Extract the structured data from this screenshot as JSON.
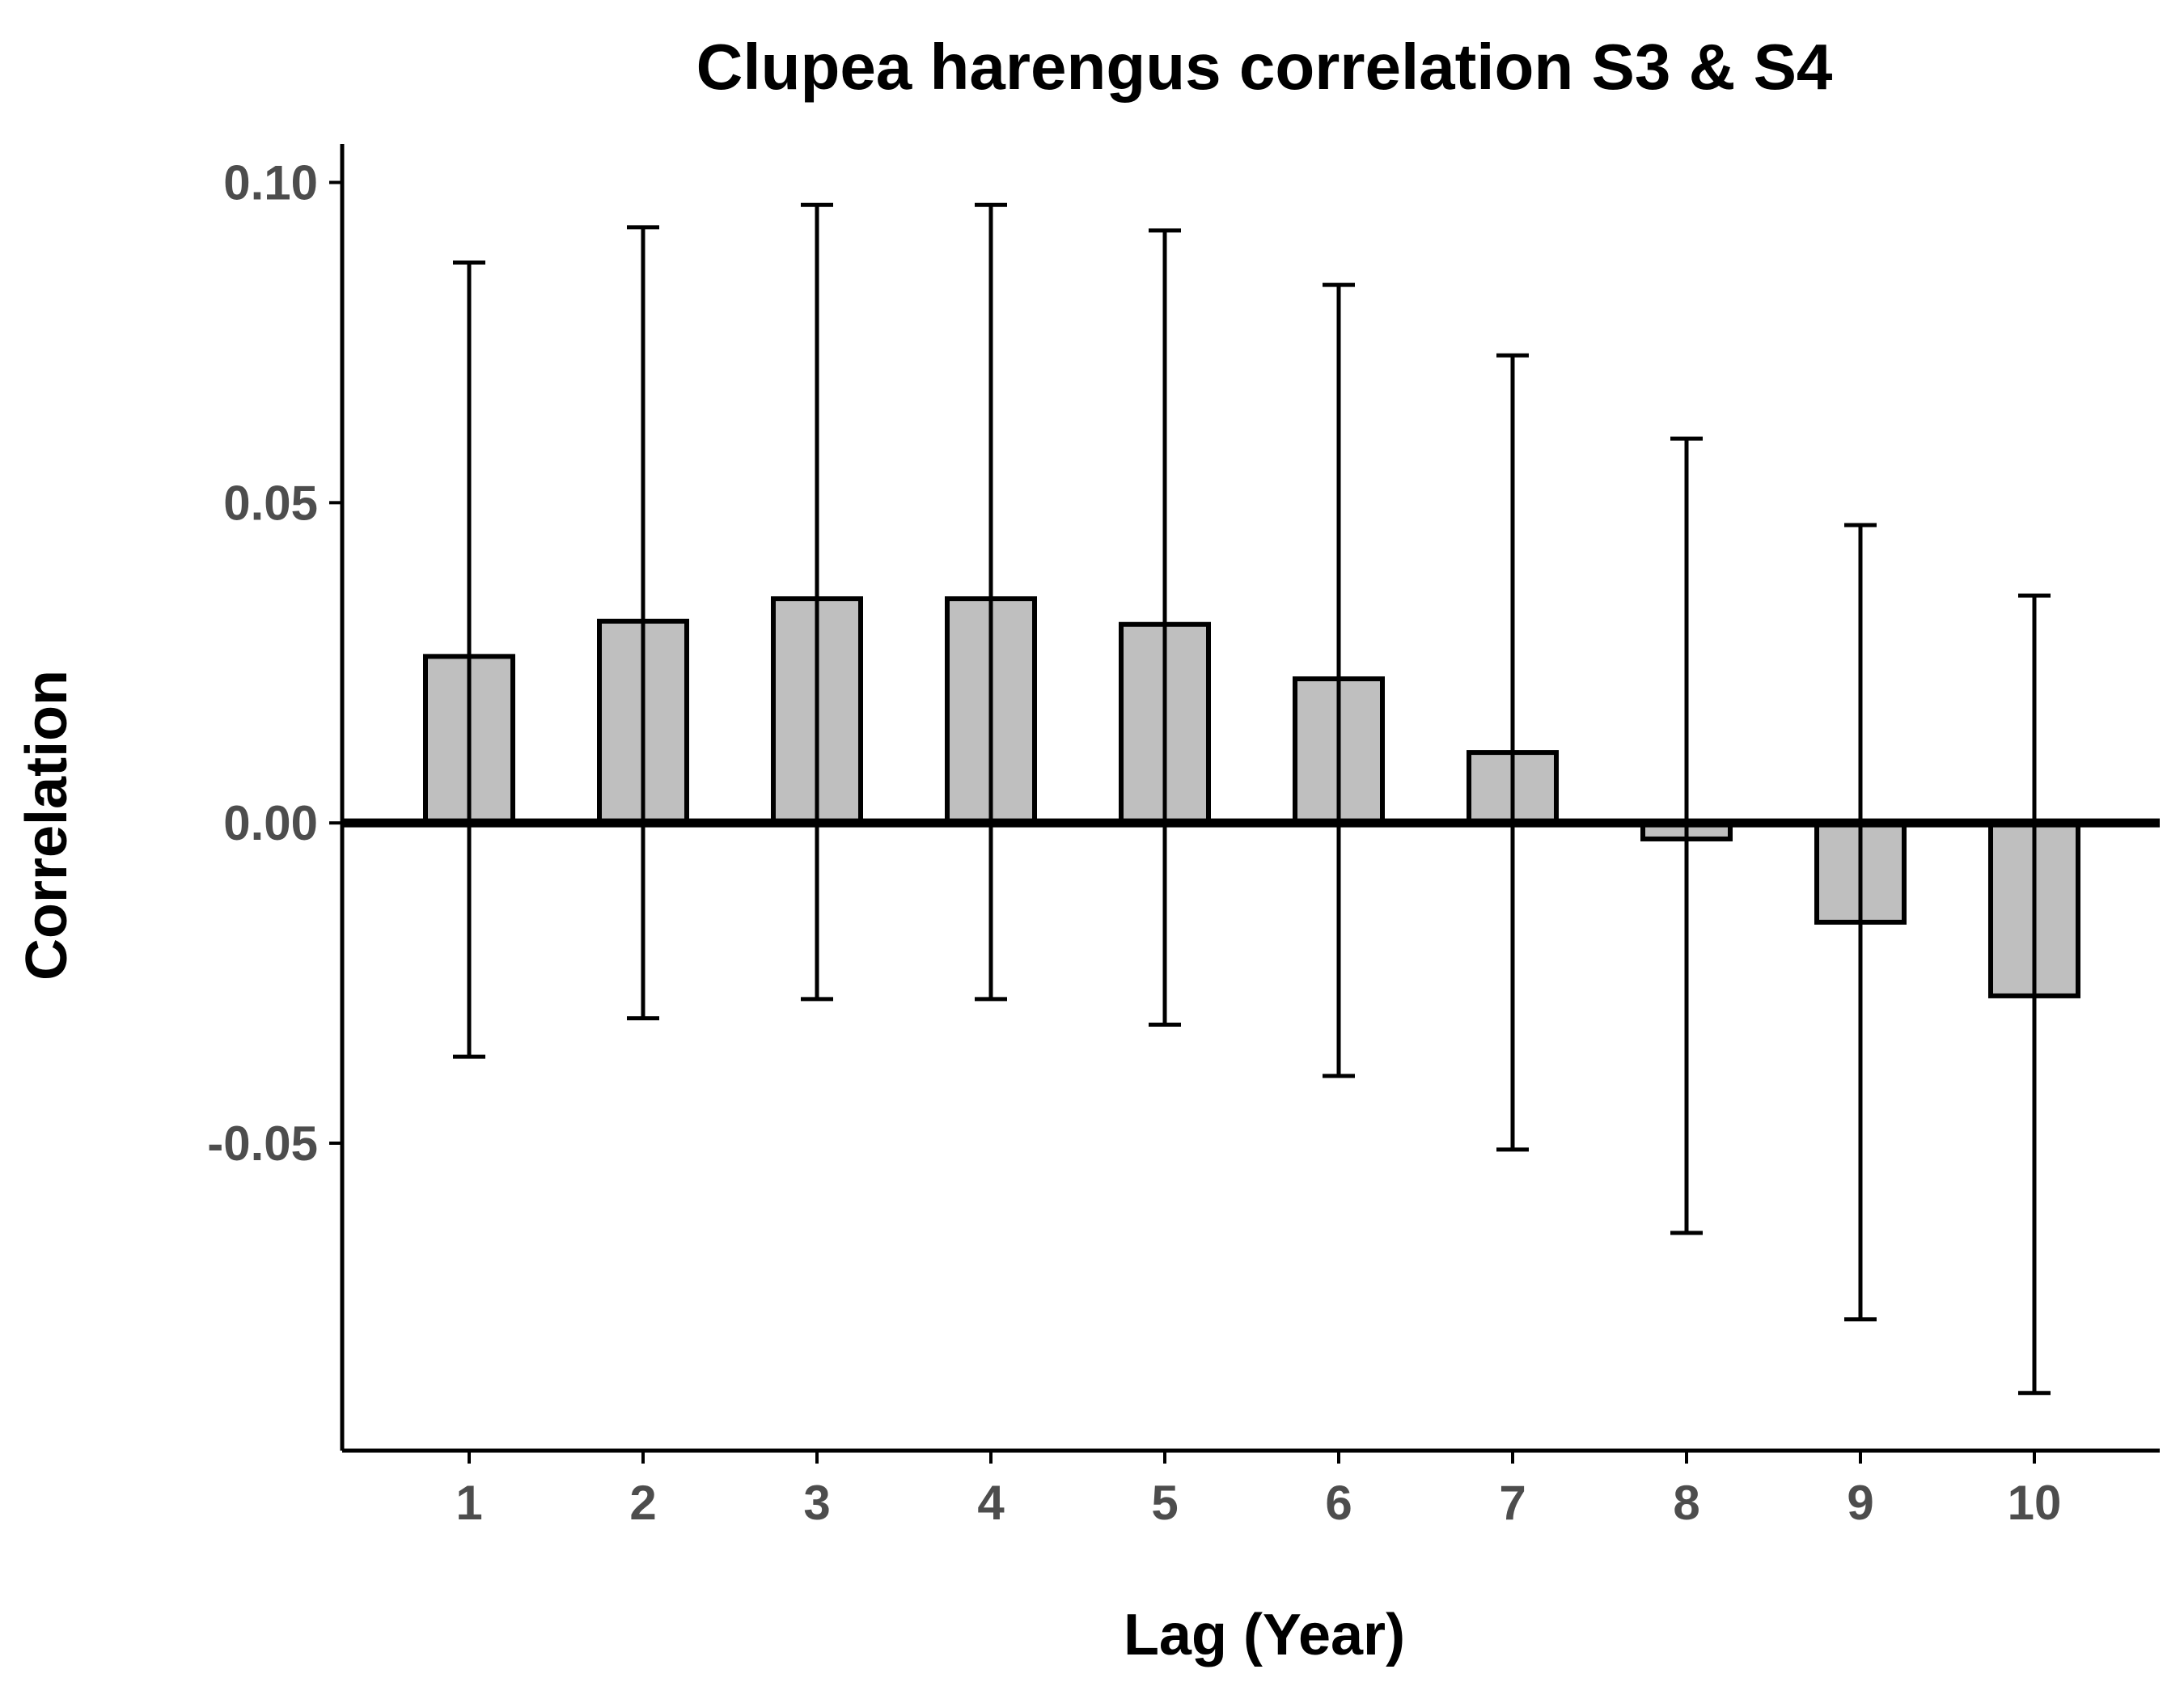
{
  "chart_data": {
    "type": "bar",
    "title": "Clupea harengus correlation S3 & S4",
    "xlabel": "Lag (Year)",
    "ylabel": "Correlation",
    "categories": [
      "1",
      "2",
      "3",
      "4",
      "5",
      "6",
      "7",
      "8",
      "9",
      "10"
    ],
    "values": [
      0.026,
      0.0315,
      0.035,
      0.035,
      0.031,
      0.0225,
      0.011,
      -0.0025,
      -0.0155,
      -0.027
    ],
    "error_upper": [
      0.0875,
      0.093,
      0.0965,
      0.0965,
      0.0925,
      0.084,
      0.073,
      0.06,
      0.0465,
      0.0355
    ],
    "error_lower": [
      -0.0365,
      -0.0305,
      -0.0275,
      -0.0275,
      -0.0315,
      -0.0395,
      -0.051,
      -0.064,
      -0.0775,
      -0.089
    ],
    "y_ticks": [
      "-0.05",
      "0.00",
      "0.05",
      "0.10"
    ],
    "ylim": [
      -0.098,
      0.106
    ],
    "bar_color": "#bfbfbf",
    "reference_line": 0,
    "grid": false,
    "legend": "none"
  }
}
